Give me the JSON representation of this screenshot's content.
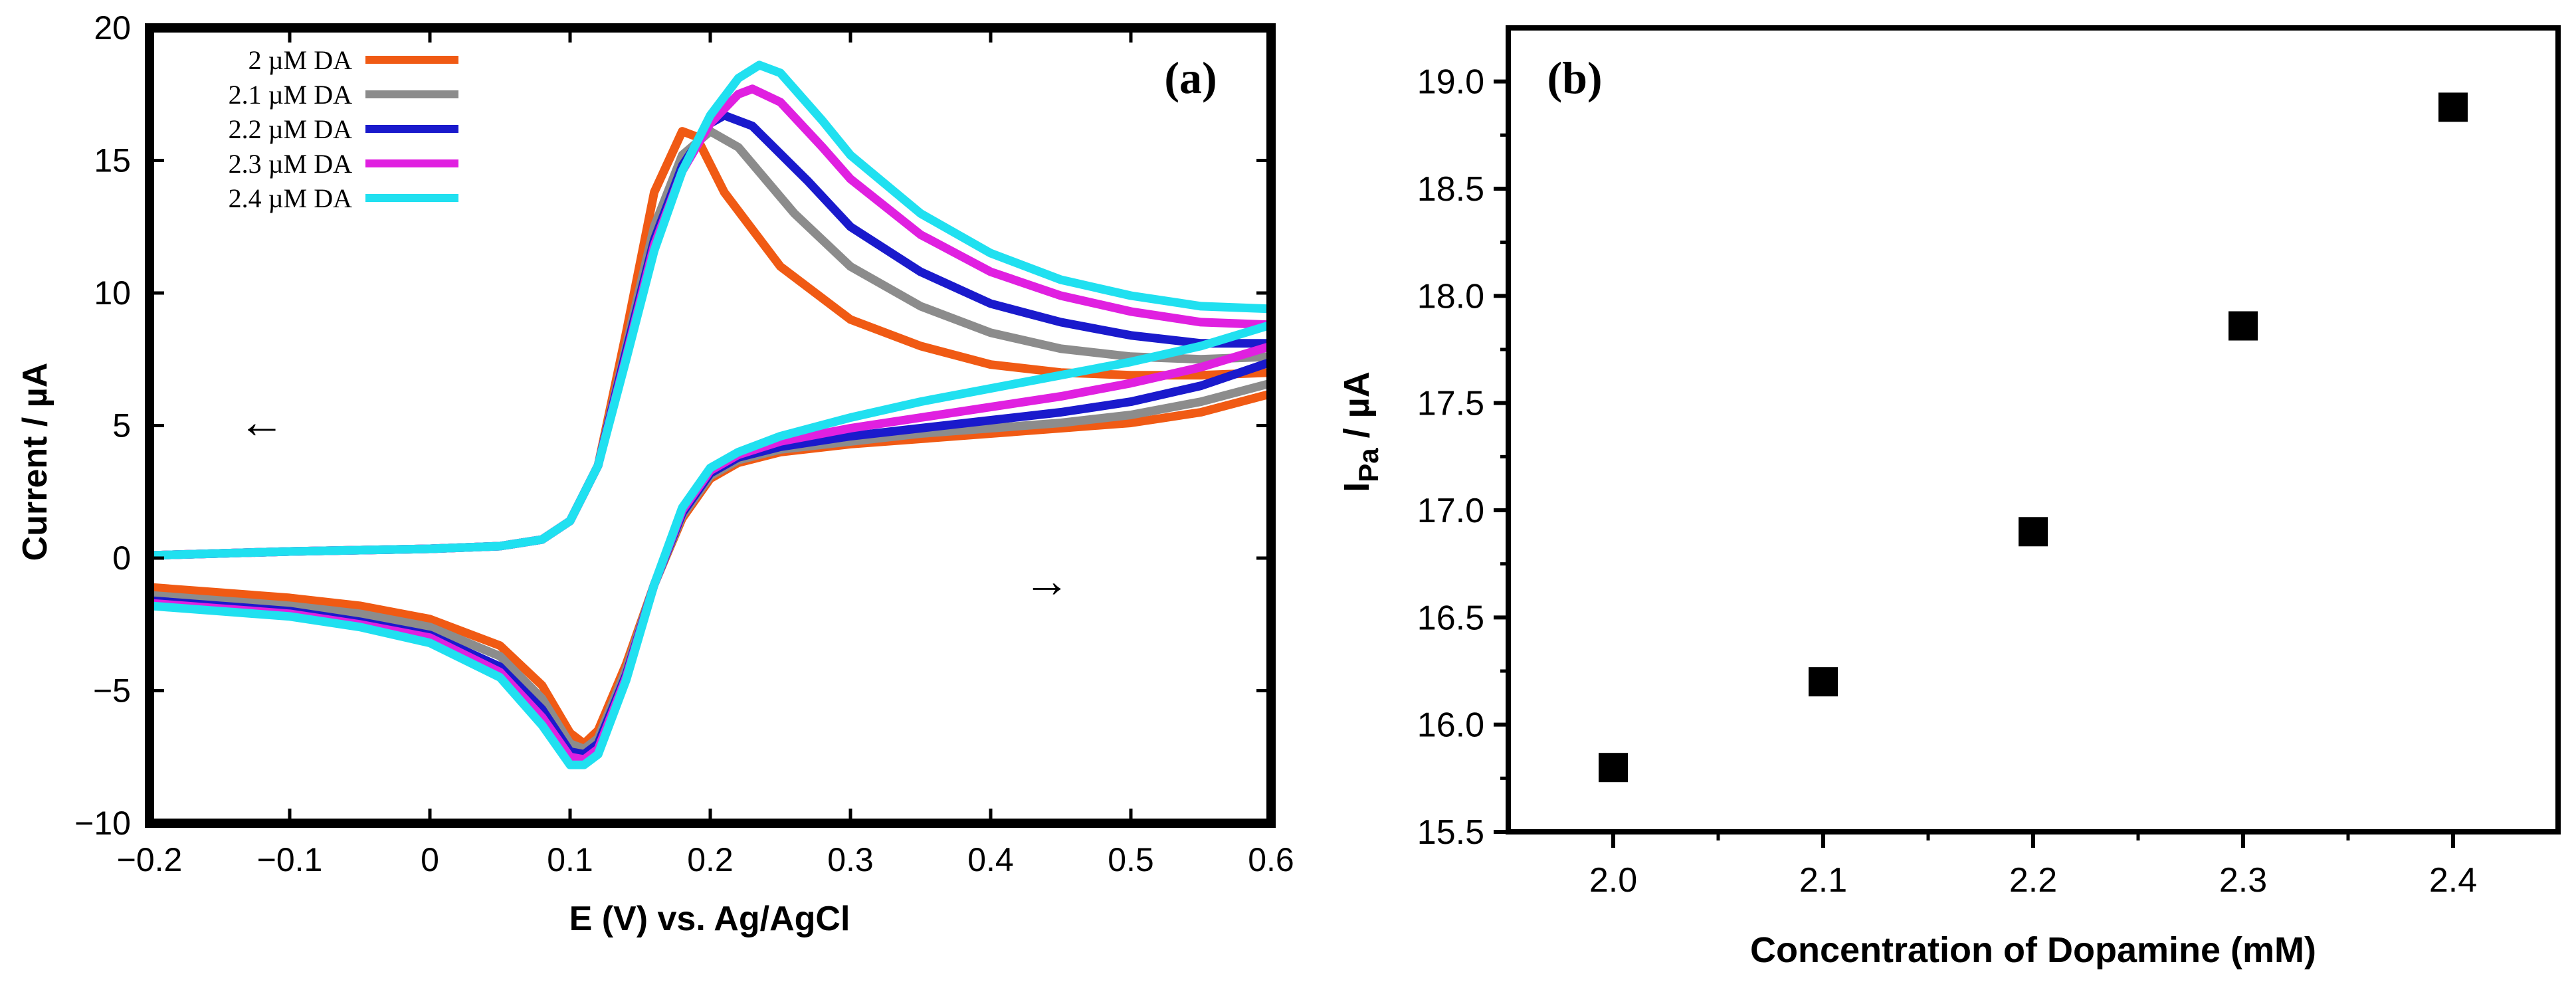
{
  "chart_data": [
    {
      "panel": "a",
      "type": "line",
      "panel_label": "(a)",
      "xlabel": "E (V) vs. Ag/AgCl",
      "ylabel": "Current / µA",
      "xlim": [
        -0.2,
        0.6
      ],
      "ylim": [
        -10,
        20
      ],
      "x_ticks": [
        -0.2,
        -0.1,
        0,
        0.1,
        0.2,
        0.3,
        0.4,
        0.5,
        0.6
      ],
      "x_tick_labels": [
        "−0.2",
        "−0.1",
        "0",
        "0.1",
        "0.2",
        "0.3",
        "0.4",
        "0.5",
        "0.6"
      ],
      "y_ticks": [
        -10,
        -5,
        0,
        5,
        10,
        15,
        20
      ],
      "y_tick_labels": [
        "−10",
        "−5",
        "0",
        "5",
        "10",
        "15",
        "20"
      ],
      "grid": false,
      "legend_position": "top-left",
      "annotations": [
        {
          "name": "scan-direction-left-arrow",
          "text": "←",
          "x": -0.12,
          "y": 5
        },
        {
          "name": "scan-direction-right-arrow",
          "text": "→",
          "x": 0.44,
          "y": -1
        }
      ],
      "series": [
        {
          "name": "2 µM DA",
          "color": "#f05a14",
          "forward": {
            "x": [
              -0.2,
              -0.1,
              0.0,
              0.05,
              0.08,
              0.1,
              0.12,
              0.14,
              0.16,
              0.18,
              0.19,
              0.21,
              0.25,
              0.3,
              0.35,
              0.4,
              0.45,
              0.5,
              0.55,
              0.6
            ],
            "y": [
              0.1,
              0.25,
              0.35,
              0.45,
              0.7,
              1.4,
              3.5,
              8.5,
              13.8,
              16.1,
              15.9,
              13.8,
              11.0,
              9.0,
              8.0,
              7.3,
              7.0,
              6.9,
              6.9,
              7.0
            ]
          },
          "reverse": {
            "x": [
              0.6,
              0.55,
              0.5,
              0.45,
              0.4,
              0.35,
              0.3,
              0.25,
              0.22,
              0.2,
              0.18,
              0.16,
              0.14,
              0.12,
              0.11,
              0.1,
              0.08,
              0.05,
              0.0,
              -0.05,
              -0.1,
              -0.15,
              -0.2
            ],
            "y": [
              6.2,
              5.5,
              5.1,
              4.9,
              4.7,
              4.5,
              4.3,
              4.0,
              3.6,
              3.0,
              1.5,
              -1.0,
              -4.0,
              -6.5,
              -7.0,
              -6.6,
              -4.8,
              -3.3,
              -2.3,
              -1.8,
              -1.5,
              -1.3,
              -1.1
            ]
          }
        },
        {
          "name": "2.1 µM DA",
          "color": "#8c8c8c",
          "forward": {
            "x": [
              -0.2,
              -0.1,
              0.0,
              0.05,
              0.08,
              0.1,
              0.12,
              0.14,
              0.16,
              0.18,
              0.2,
              0.22,
              0.26,
              0.3,
              0.35,
              0.4,
              0.45,
              0.5,
              0.55,
              0.6
            ],
            "y": [
              0.1,
              0.25,
              0.35,
              0.45,
              0.7,
              1.4,
              3.5,
              8.0,
              12.5,
              15.2,
              16.1,
              15.5,
              13.0,
              11.0,
              9.5,
              8.5,
              7.9,
              7.6,
              7.5,
              7.6
            ]
          },
          "reverse": {
            "x": [
              0.6,
              0.55,
              0.5,
              0.45,
              0.4,
              0.35,
              0.3,
              0.25,
              0.22,
              0.2,
              0.18,
              0.16,
              0.14,
              0.12,
              0.11,
              0.1,
              0.08,
              0.05,
              0.0,
              -0.05,
              -0.1,
              -0.15,
              -0.2
            ],
            "y": [
              6.6,
              5.9,
              5.4,
              5.1,
              4.9,
              4.7,
              4.4,
              4.1,
              3.7,
              3.1,
              1.6,
              -1.0,
              -4.2,
              -6.8,
              -7.2,
              -7.0,
              -5.3,
              -3.7,
              -2.6,
              -2.1,
              -1.8,
              -1.6,
              -1.4
            ]
          }
        },
        {
          "name": "2.2 µM DA",
          "color": "#1a1acc",
          "forward": {
            "x": [
              -0.2,
              -0.1,
              0.0,
              0.05,
              0.08,
              0.1,
              0.12,
              0.14,
              0.16,
              0.18,
              0.2,
              0.21,
              0.23,
              0.27,
              0.3,
              0.35,
              0.4,
              0.45,
              0.5,
              0.55,
              0.6
            ],
            "y": [
              0.1,
              0.25,
              0.35,
              0.45,
              0.7,
              1.4,
              3.5,
              7.8,
              12.0,
              14.8,
              16.4,
              16.7,
              16.3,
              14.2,
              12.5,
              10.8,
              9.6,
              8.9,
              8.4,
              8.1,
              8.1
            ]
          },
          "reverse": {
            "x": [
              0.6,
              0.55,
              0.5,
              0.45,
              0.4,
              0.35,
              0.3,
              0.25,
              0.22,
              0.2,
              0.18,
              0.16,
              0.14,
              0.12,
              0.11,
              0.1,
              0.08,
              0.05,
              0.0,
              -0.05,
              -0.1,
              -0.15,
              -0.2
            ],
            "y": [
              7.4,
              6.5,
              5.9,
              5.5,
              5.2,
              4.9,
              4.6,
              4.2,
              3.8,
              3.2,
              1.7,
              -1.0,
              -4.4,
              -7.0,
              -7.4,
              -7.3,
              -5.7,
              -4.1,
              -2.9,
              -2.4,
              -2.0,
              -1.8,
              -1.6
            ]
          }
        },
        {
          "name": "2.3 µM DA",
          "color": "#e020e0",
          "forward": {
            "x": [
              -0.2,
              -0.1,
              0.0,
              0.05,
              0.08,
              0.1,
              0.12,
              0.14,
              0.16,
              0.18,
              0.2,
              0.22,
              0.23,
              0.25,
              0.28,
              0.3,
              0.35,
              0.4,
              0.45,
              0.5,
              0.55,
              0.6
            ],
            "y": [
              0.1,
              0.25,
              0.35,
              0.45,
              0.7,
              1.4,
              3.5,
              7.6,
              11.8,
              14.6,
              16.4,
              17.5,
              17.7,
              17.2,
              15.5,
              14.3,
              12.2,
              10.8,
              9.9,
              9.3,
              8.9,
              8.8
            ]
          },
          "reverse": {
            "x": [
              0.6,
              0.55,
              0.5,
              0.45,
              0.4,
              0.35,
              0.3,
              0.25,
              0.22,
              0.2,
              0.18,
              0.16,
              0.14,
              0.12,
              0.11,
              0.1,
              0.08,
              0.05,
              0.0,
              -0.05,
              -0.1,
              -0.15,
              -0.2
            ],
            "y": [
              8.0,
              7.2,
              6.6,
              6.1,
              5.7,
              5.3,
              4.9,
              4.4,
              3.9,
              3.3,
              1.8,
              -1.0,
              -4.5,
              -7.2,
              -7.6,
              -7.5,
              -6.0,
              -4.3,
              -3.0,
              -2.5,
              -2.1,
              -1.9,
              -1.7
            ]
          }
        },
        {
          "name": "2.4 µM DA",
          "color": "#20e0f0",
          "forward": {
            "x": [
              -0.2,
              -0.1,
              0.0,
              0.05,
              0.08,
              0.1,
              0.12,
              0.14,
              0.16,
              0.18,
              0.2,
              0.22,
              0.235,
              0.25,
              0.28,
              0.3,
              0.35,
              0.4,
              0.45,
              0.5,
              0.55,
              0.6
            ],
            "y": [
              0.1,
              0.25,
              0.35,
              0.45,
              0.7,
              1.4,
              3.5,
              7.5,
              11.6,
              14.6,
              16.7,
              18.1,
              18.6,
              18.3,
              16.5,
              15.2,
              13.0,
              11.5,
              10.5,
              9.9,
              9.5,
              9.4
            ]
          },
          "reverse": {
            "x": [
              0.6,
              0.55,
              0.5,
              0.45,
              0.4,
              0.35,
              0.3,
              0.25,
              0.22,
              0.2,
              0.18,
              0.16,
              0.14,
              0.12,
              0.11,
              0.1,
              0.08,
              0.05,
              0.0,
              -0.05,
              -0.1,
              -0.15,
              -0.2
            ],
            "y": [
              8.8,
              8.0,
              7.4,
              6.9,
              6.4,
              5.9,
              5.3,
              4.6,
              4.0,
              3.4,
              1.9,
              -1.0,
              -4.6,
              -7.4,
              -7.8,
              -7.8,
              -6.3,
              -4.5,
              -3.2,
              -2.6,
              -2.2,
              -2.0,
              -1.8
            ]
          }
        }
      ]
    },
    {
      "panel": "b",
      "type": "scatter",
      "panel_label": "(b)",
      "xlabel": "Concentration of Dopamine (mM)",
      "ylabel_main": "I",
      "ylabel_sub": "Pa",
      "ylabel_unit": " / µA",
      "xlim": [
        1.95,
        2.45
      ],
      "ylim": [
        15.5,
        19.25
      ],
      "x_ticks": [
        2.0,
        2.1,
        2.2,
        2.3,
        2.4
      ],
      "x_tick_labels": [
        "2.0",
        "2.1",
        "2.2",
        "2.3",
        "2.4"
      ],
      "y_ticks": [
        15.5,
        16.0,
        16.5,
        17.0,
        17.5,
        18.0,
        18.5,
        19.0
      ],
      "y_tick_labels": [
        "15.5",
        "16.0",
        "16.5",
        "17.0",
        "17.5",
        "18.0",
        "18.5",
        "19.0"
      ],
      "grid": false,
      "marker": "square",
      "marker_color": "#000000",
      "series": [
        {
          "name": "IPa",
          "x": [
            2.0,
            2.1,
            2.2,
            2.3,
            2.4
          ],
          "y": [
            15.8,
            16.2,
            16.9,
            17.86,
            18.88
          ]
        }
      ]
    }
  ]
}
